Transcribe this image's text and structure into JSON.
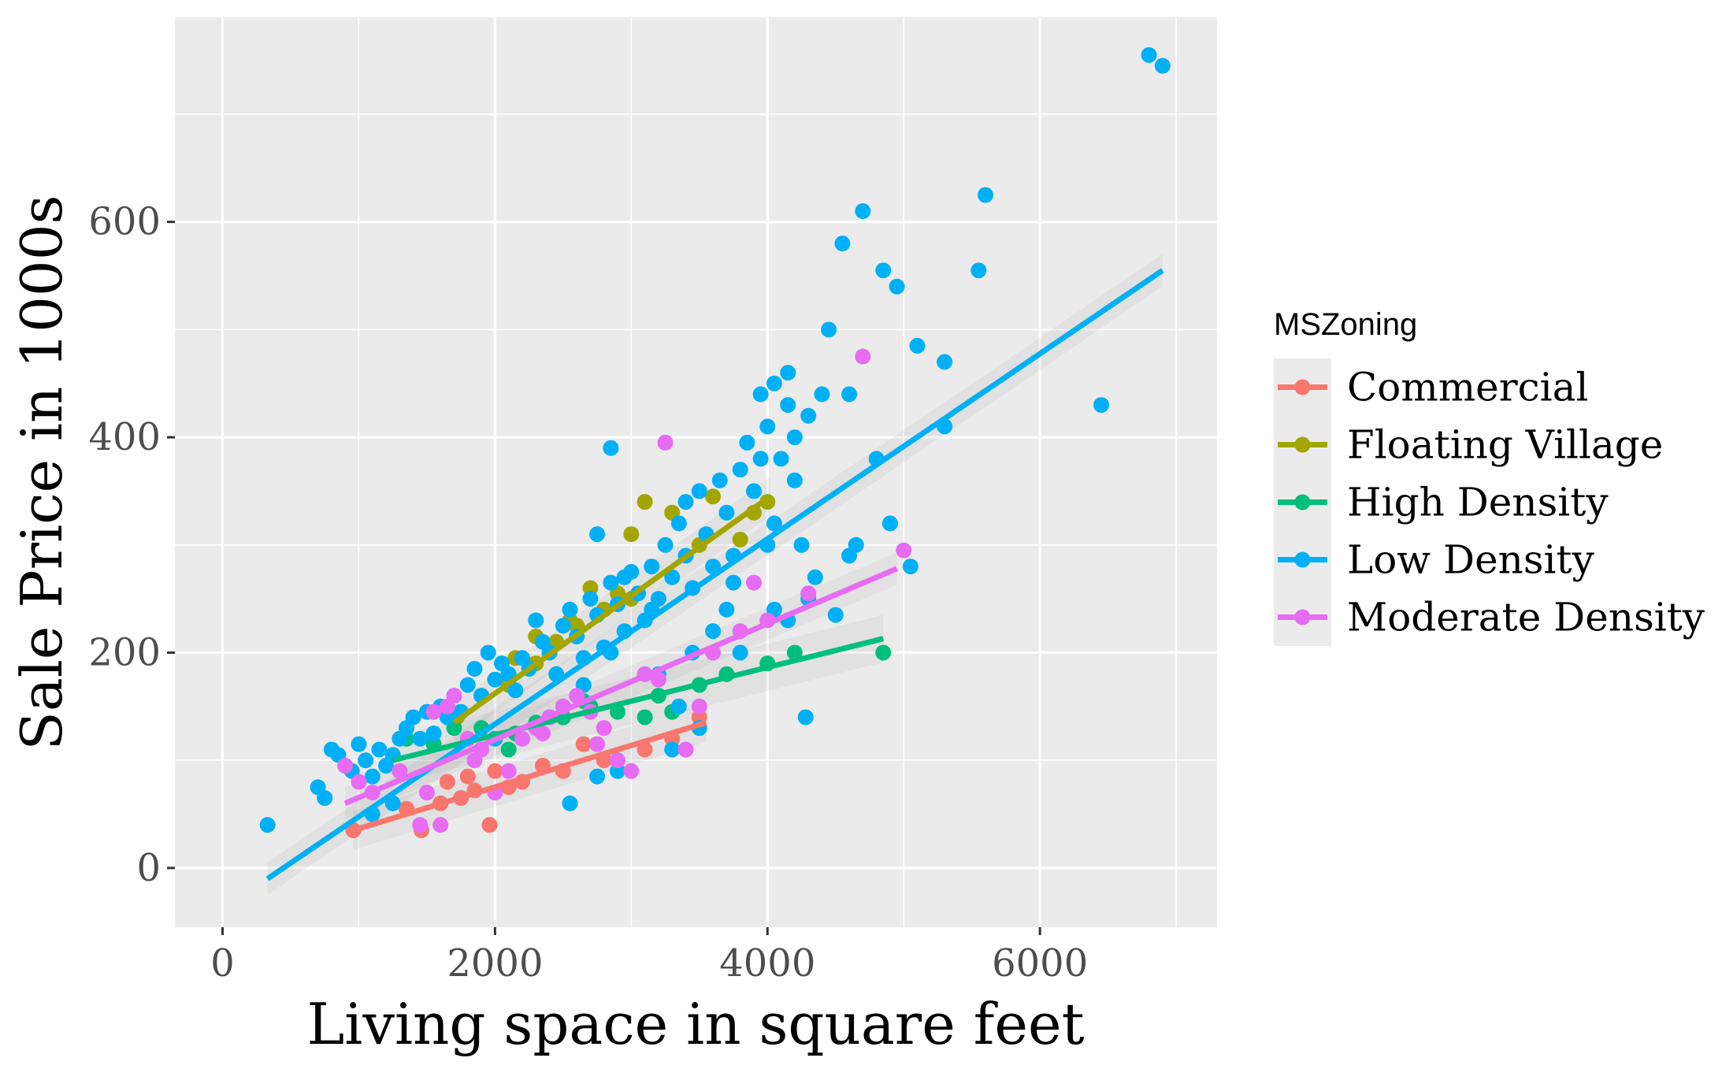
{
  "chart_data": {
    "type": "scatter",
    "xlabel": "Living space in square feet",
    "ylabel": "Sale Price in 1000s",
    "xlim": [
      -350,
      7300
    ],
    "ylim": [
      -55,
      790
    ],
    "x_ticks": [
      0,
      2000,
      4000,
      6000
    ],
    "x_tick_labels": [
      "0",
      "2000",
      "4000",
      "6000"
    ],
    "y_ticks": [
      0,
      200,
      400,
      600
    ],
    "y_tick_labels": [
      "0",
      "200",
      "400",
      "600"
    ],
    "grid": true,
    "legend": {
      "title": "MSZoning",
      "position": "right"
    },
    "series": [
      {
        "name": "Commercial",
        "color": "#F8766D",
        "points": [
          [
            960,
            35
          ],
          [
            1460,
            35
          ],
          [
            1960,
            40
          ],
          [
            1350,
            55
          ],
          [
            1600,
            60
          ],
          [
            1750,
            65
          ],
          [
            1850,
            72
          ],
          [
            1800,
            85
          ],
          [
            2100,
            75
          ],
          [
            2200,
            80
          ],
          [
            2500,
            90
          ],
          [
            2800,
            100
          ],
          [
            3100,
            110
          ],
          [
            3500,
            140
          ],
          [
            3300,
            120
          ],
          [
            1650,
            80
          ],
          [
            2350,
            95
          ],
          [
            2000,
            90
          ],
          [
            2650,
            115
          ]
        ],
        "fit": {
          "x": [
            960,
            3550
          ],
          "y": [
            35,
            135
          ],
          "band": 18
        }
      },
      {
        "name": "Floating Village",
        "color": "#A3A500",
        "points": [
          [
            1720,
            140
          ],
          [
            1900,
            160
          ],
          [
            2100,
            170
          ],
          [
            2300,
            190
          ],
          [
            2300,
            215
          ],
          [
            2450,
            210
          ],
          [
            2600,
            225
          ],
          [
            2800,
            240
          ],
          [
            3000,
            250
          ],
          [
            2900,
            255
          ],
          [
            3000,
            310
          ],
          [
            3100,
            340
          ],
          [
            3300,
            330
          ],
          [
            3500,
            300
          ],
          [
            3800,
            305
          ],
          [
            4000,
            340
          ],
          [
            3600,
            345
          ],
          [
            2150,
            195
          ],
          [
            2700,
            260
          ],
          [
            2550,
            230
          ],
          [
            2400,
            200
          ],
          [
            3900,
            330
          ]
        ],
        "fit": {
          "x": [
            1700,
            4020
          ],
          "y": [
            135,
            345
          ],
          "band": 18
        }
      },
      {
        "name": "High Density",
        "color": "#00BF7D",
        "points": [
          [
            1350,
            120
          ],
          [
            1550,
            115
          ],
          [
            1700,
            130
          ],
          [
            1900,
            130
          ],
          [
            2100,
            110
          ],
          [
            2300,
            135
          ],
          [
            2500,
            140
          ],
          [
            2700,
            150
          ],
          [
            2900,
            145
          ],
          [
            3100,
            140
          ],
          [
            3300,
            145
          ],
          [
            3500,
            170
          ],
          [
            3700,
            180
          ],
          [
            4000,
            190
          ],
          [
            4200,
            200
          ],
          [
            4850,
            200
          ],
          [
            2150,
            125
          ],
          [
            2650,
            155
          ],
          [
            3200,
            160
          ]
        ],
        "fit": {
          "x": [
            1250,
            4850
          ],
          "y": [
            100,
            213
          ],
          "band": 22
        }
      },
      {
        "name": "Low Density",
        "color": "#00B0F6",
        "points": [
          [
            330,
            40
          ],
          [
            700,
            75
          ],
          [
            750,
            65
          ],
          [
            800,
            110
          ],
          [
            850,
            105
          ],
          [
            900,
            95
          ],
          [
            950,
            90
          ],
          [
            1000,
            115
          ],
          [
            1050,
            100
          ],
          [
            1100,
            85
          ],
          [
            1150,
            110
          ],
          [
            1200,
            95
          ],
          [
            1250,
            105
          ],
          [
            1300,
            120
          ],
          [
            1350,
            130
          ],
          [
            1400,
            140
          ],
          [
            1450,
            120
          ],
          [
            1500,
            145
          ],
          [
            1550,
            125
          ],
          [
            1600,
            150
          ],
          [
            1650,
            140
          ],
          [
            1700,
            160
          ],
          [
            1750,
            145
          ],
          [
            1800,
            170
          ],
          [
            1850,
            185
          ],
          [
            1900,
            160
          ],
          [
            1950,
            200
          ],
          [
            2000,
            175
          ],
          [
            2050,
            190
          ],
          [
            2100,
            180
          ],
          [
            2150,
            165
          ],
          [
            2200,
            195
          ],
          [
            2250,
            185
          ],
          [
            2300,
            230
          ],
          [
            2350,
            210
          ],
          [
            2400,
            200
          ],
          [
            2450,
            180
          ],
          [
            2500,
            225
          ],
          [
            2550,
            240
          ],
          [
            2550,
            60
          ],
          [
            2600,
            215
          ],
          [
            2650,
            195
          ],
          [
            2700,
            250
          ],
          [
            2750,
            235
          ],
          [
            2750,
            310
          ],
          [
            2800,
            205
          ],
          [
            2850,
            390
          ],
          [
            2850,
            265
          ],
          [
            2900,
            245
          ],
          [
            2950,
            220
          ],
          [
            3000,
            275
          ],
          [
            3050,
            255
          ],
          [
            3100,
            230
          ],
          [
            3150,
            280
          ],
          [
            3200,
            250
          ],
          [
            3250,
            300
          ],
          [
            3300,
            270
          ],
          [
            3350,
            320
          ],
          [
            3400,
            290
          ],
          [
            3400,
            340
          ],
          [
            3450,
            260
          ],
          [
            3500,
            350
          ],
          [
            3550,
            310
          ],
          [
            3600,
            280
          ],
          [
            3650,
            360
          ],
          [
            3700,
            330
          ],
          [
            3750,
            290
          ],
          [
            3800,
            370
          ],
          [
            3850,
            395
          ],
          [
            3900,
            350
          ],
          [
            3950,
            380
          ],
          [
            3950,
            440
          ],
          [
            4000,
            410
          ],
          [
            4050,
            450
          ],
          [
            4050,
            320
          ],
          [
            4100,
            380
          ],
          [
            4150,
            460
          ],
          [
            4150,
            430
          ],
          [
            4200,
            360
          ],
          [
            4200,
            400
          ],
          [
            4250,
            300
          ],
          [
            4300,
            420
          ],
          [
            4350,
            270
          ],
          [
            4400,
            440
          ],
          [
            4450,
            500
          ],
          [
            4500,
            235
          ],
          [
            4550,
            580
          ],
          [
            4600,
            440
          ],
          [
            4650,
            300
          ],
          [
            4700,
            610
          ],
          [
            4800,
            380
          ],
          [
            4850,
            555
          ],
          [
            4900,
            320
          ],
          [
            4950,
            540
          ],
          [
            5050,
            280
          ],
          [
            5100,
            485
          ],
          [
            5300,
            470
          ],
          [
            5300,
            410
          ],
          [
            5550,
            555
          ],
          [
            5600,
            625
          ],
          [
            6450,
            430
          ],
          [
            6800,
            755
          ],
          [
            6900,
            745
          ],
          [
            4280,
            140
          ],
          [
            3300,
            110
          ],
          [
            2400,
            140
          ],
          [
            2000,
            120
          ],
          [
            3600,
            220
          ],
          [
            3200,
            180
          ],
          [
            2850,
            200
          ],
          [
            2650,
            170
          ],
          [
            3450,
            200
          ],
          [
            3750,
            265
          ],
          [
            4050,
            240
          ],
          [
            4150,
            230
          ],
          [
            1250,
            60
          ],
          [
            1100,
            50
          ],
          [
            2900,
            90
          ],
          [
            3500,
            130
          ],
          [
            3800,
            200
          ],
          [
            4000,
            300
          ],
          [
            4300,
            250
          ],
          [
            2750,
            85
          ],
          [
            3350,
            150
          ],
          [
            3150,
            240
          ],
          [
            2950,
            270
          ],
          [
            3700,
            240
          ],
          [
            4600,
            290
          ]
        ],
        "fit": {
          "x": [
            330,
            6900
          ],
          "y": [
            -10,
            555
          ],
          "band": 15
        }
      },
      {
        "name": "Moderate Density",
        "color": "#E76BF3",
        "points": [
          [
            900,
            95
          ],
          [
            1000,
            80
          ],
          [
            1100,
            70
          ],
          [
            1300,
            90
          ],
          [
            1450,
            40
          ],
          [
            1600,
            40
          ],
          [
            1500,
            70
          ],
          [
            1550,
            145
          ],
          [
            1650,
            150
          ],
          [
            1700,
            160
          ],
          [
            1800,
            120
          ],
          [
            1850,
            100
          ],
          [
            2000,
            70
          ],
          [
            2100,
            90
          ],
          [
            2200,
            120
          ],
          [
            2300,
            130
          ],
          [
            2400,
            140
          ],
          [
            2500,
            150
          ],
          [
            2600,
            160
          ],
          [
            2700,
            145
          ],
          [
            2800,
            130
          ],
          [
            2900,
            100
          ],
          [
            3000,
            90
          ],
          [
            3100,
            180
          ],
          [
            3200,
            175
          ],
          [
            3250,
            395
          ],
          [
            3400,
            110
          ],
          [
            3500,
            150
          ],
          [
            3600,
            200
          ],
          [
            3800,
            220
          ],
          [
            3900,
            265
          ],
          [
            4000,
            230
          ],
          [
            4300,
            255
          ],
          [
            4700,
            475
          ],
          [
            5000,
            295
          ],
          [
            1900,
            110
          ],
          [
            2350,
            125
          ],
          [
            2750,
            115
          ]
        ],
        "fit": {
          "x": [
            900,
            4950
          ],
          "y": [
            60,
            278
          ],
          "band": 15
        }
      }
    ]
  }
}
